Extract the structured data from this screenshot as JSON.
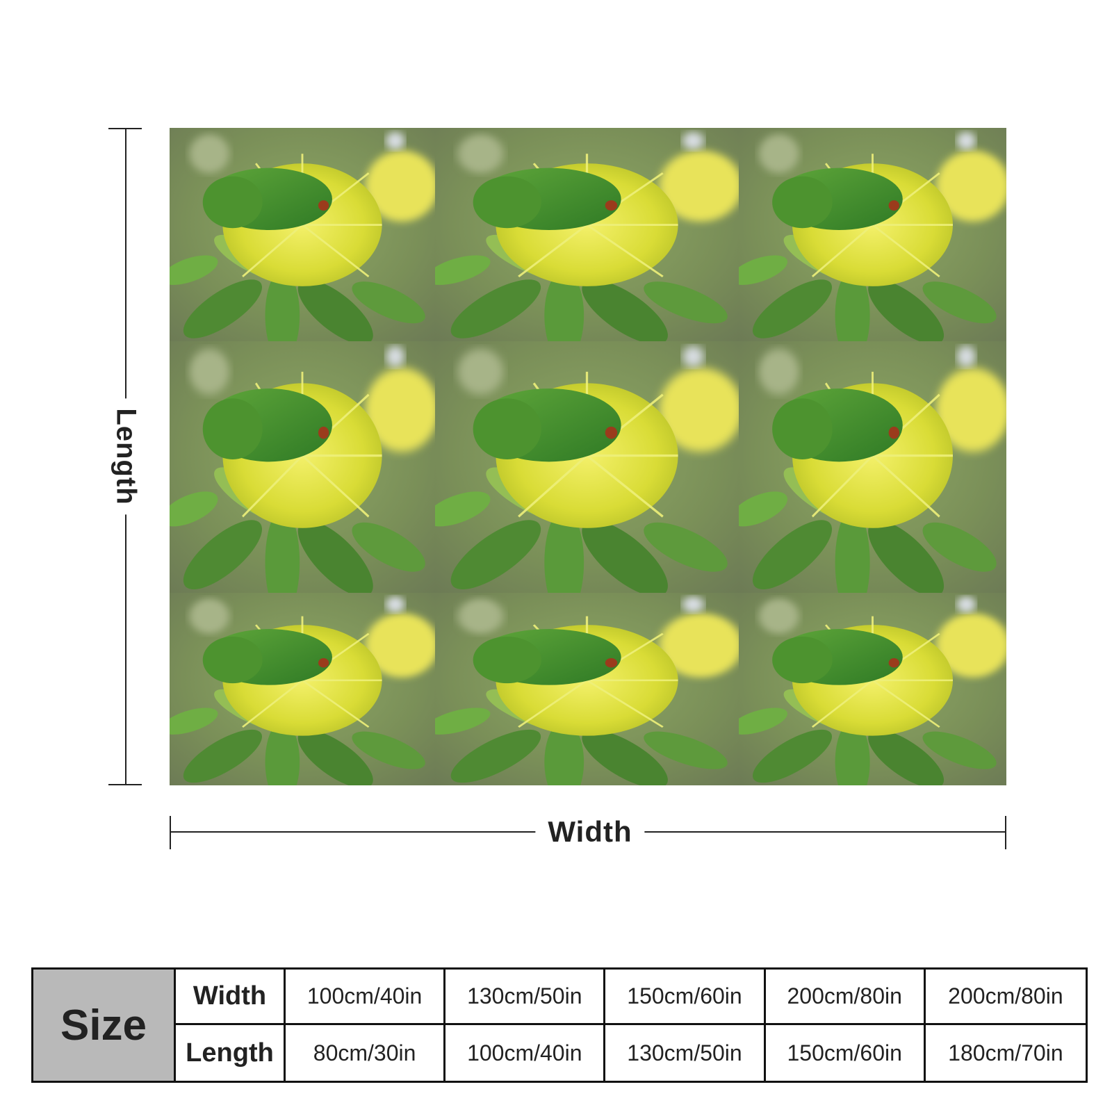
{
  "product_image": {
    "subject": "parrot on yellow flower",
    "tiles": 9
  },
  "dimensions": {
    "length_label": "Length",
    "width_label": "Width"
  },
  "size_table": {
    "header": "Size",
    "row_labels": [
      "Width",
      "Length"
    ],
    "widths": [
      "100cm/40in",
      "130cm/50in",
      "150cm/60in",
      "200cm/80in",
      "200cm/80in"
    ],
    "lengths": [
      "80cm/30in",
      "100cm/40in",
      "130cm/50in",
      "150cm/60in",
      "180cm/70in"
    ]
  },
  "colors": {
    "table_header_bg": "#b9b9b9",
    "border": "#111111",
    "parrot_green": "#3f8f2a",
    "flower_yellow": "#e4e23a",
    "leaf_green": "#4f8a33"
  }
}
